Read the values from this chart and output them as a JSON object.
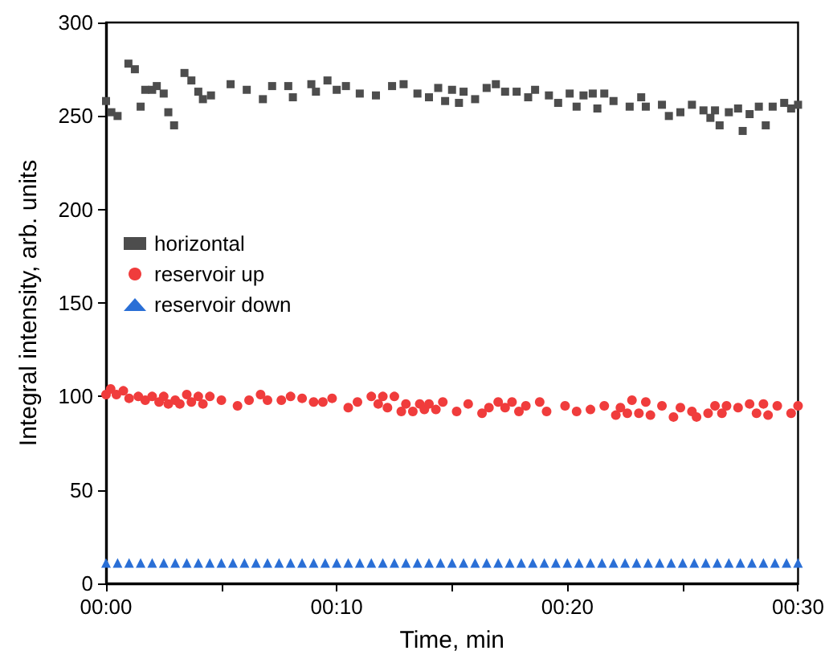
{
  "chart_data": {
    "type": "scatter",
    "xlabel": "Time, min",
    "ylabel": "Integral intensity, arb. units",
    "xlim": [
      0,
      30
    ],
    "xticks": [
      {
        "value": 0,
        "label": "00:00"
      },
      {
        "value": 5,
        "label": null
      },
      {
        "value": 10,
        "label": "00:10"
      },
      {
        "value": 15,
        "label": null
      },
      {
        "value": 20,
        "label": "00:20"
      },
      {
        "value": 25,
        "label": null
      },
      {
        "value": 30,
        "label": "00:30"
      }
    ],
    "ylim": [
      0,
      300
    ],
    "yticks": [
      0,
      50,
      100,
      150,
      200,
      250,
      300
    ],
    "grid": false,
    "legend": "left",
    "series": [
      {
        "name": "horizontal",
        "color": "#4d4d4d",
        "marker": "square",
        "x": [
          0,
          0.23,
          0.5,
          0.97,
          1.25,
          1.5,
          1.7,
          2.0,
          2.2,
          2.5,
          2.7,
          2.95,
          3.4,
          3.7,
          4.0,
          4.2,
          4.55,
          5.4,
          6.1,
          6.8,
          7.2,
          7.9,
          8.1,
          8.9,
          9.1,
          9.6,
          10.0,
          10.4,
          11.0,
          11.7,
          12.4,
          12.9,
          13.5,
          14.0,
          14.4,
          14.7,
          15.0,
          15.3,
          15.5,
          16.0,
          16.5,
          16.9,
          17.3,
          17.8,
          18.3,
          18.6,
          19.2,
          19.6,
          20.1,
          20.4,
          20.7,
          21.1,
          21.3,
          21.6,
          22.0,
          22.7,
          23.2,
          23.4,
          24.1,
          24.4,
          24.9,
          25.4,
          25.9,
          26.2,
          26.4,
          26.6,
          27.0,
          27.4,
          27.6,
          27.9,
          28.3,
          28.6,
          28.9,
          29.4,
          29.7,
          30.0
        ],
        "values": [
          258,
          252,
          250,
          278,
          275,
          255,
          264,
          264,
          266,
          262,
          252,
          245,
          273,
          269,
          263,
          259,
          261,
          267,
          264,
          259,
          266,
          266,
          260,
          267,
          263,
          269,
          264,
          266,
          262,
          261,
          266,
          267,
          262,
          260,
          265,
          258,
          264,
          257,
          263,
          259,
          265,
          267,
          263,
          263,
          260,
          264,
          261,
          257,
          262,
          255,
          261,
          262,
          254,
          262,
          258,
          255,
          260,
          255,
          256,
          250,
          252,
          256,
          253,
          249,
          253,
          245,
          252,
          254,
          242,
          251,
          255,
          245,
          255,
          257,
          254,
          256
        ]
      },
      {
        "name": "reservoir up",
        "color": "#f03c3c",
        "marker": "circle",
        "x": [
          0,
          0.2,
          0.45,
          0.75,
          1.0,
          1.4,
          1.7,
          2.0,
          2.3,
          2.5,
          2.7,
          3.0,
          3.2,
          3.5,
          3.7,
          4.0,
          4.2,
          4.5,
          5.0,
          5.7,
          6.2,
          6.7,
          7.0,
          7.6,
          8.0,
          8.5,
          9.0,
          9.4,
          9.8,
          10.5,
          10.9,
          11.5,
          11.8,
          12.0,
          12.2,
          12.5,
          12.8,
          13.0,
          13.3,
          13.6,
          13.8,
          14.0,
          14.3,
          14.6,
          15.2,
          15.7,
          16.3,
          16.6,
          17.0,
          17.3,
          17.6,
          17.9,
          18.2,
          18.8,
          19.1,
          19.9,
          20.4,
          21.0,
          21.6,
          22.1,
          22.3,
          22.6,
          22.8,
          23.1,
          23.4,
          23.6,
          24.1,
          24.6,
          24.9,
          25.4,
          25.6,
          26.1,
          26.4,
          26.7,
          26.9,
          27.4,
          27.9,
          28.2,
          28.5,
          28.7,
          29.1,
          29.7,
          30.0
        ],
        "values": [
          101,
          104,
          101,
          103,
          99,
          100,
          98,
          100,
          97,
          100,
          96,
          98,
          96,
          101,
          97,
          100,
          96,
          100,
          98,
          95,
          98,
          101,
          98,
          98,
          100,
          99,
          97,
          97,
          99,
          94,
          97,
          100,
          96,
          100,
          94,
          100,
          92,
          96,
          92,
          96,
          93,
          96,
          93,
          97,
          92,
          96,
          91,
          94,
          97,
          94,
          97,
          92,
          95,
          97,
          92,
          95,
          92,
          93,
          95,
          90,
          94,
          91,
          98,
          91,
          97,
          90,
          95,
          89,
          94,
          92,
          89,
          91,
          95,
          91,
          95,
          94,
          96,
          91,
          96,
          90,
          95,
          91,
          95
        ]
      },
      {
        "name": "reservoir down",
        "color": "#2a6fd6",
        "marker": "triangle",
        "x": [
          0,
          0.5,
          1,
          1.5,
          2,
          2.5,
          3,
          3.5,
          4,
          4.5,
          5,
          5.5,
          6,
          6.5,
          7,
          7.5,
          8,
          8.5,
          9,
          9.5,
          10,
          10.5,
          11,
          11.5,
          12,
          12.5,
          13,
          13.5,
          14,
          14.5,
          15,
          15.5,
          16,
          16.5,
          17,
          17.5,
          18,
          18.5,
          19,
          19.5,
          20,
          20.5,
          21,
          21.5,
          22,
          22.5,
          23,
          23.5,
          24,
          24.5,
          25,
          25.5,
          26,
          26.5,
          27,
          27.5,
          28,
          28.5,
          29,
          29.5,
          30
        ],
        "values": [
          11,
          11,
          11,
          11,
          11,
          11,
          11,
          11,
          11,
          11,
          11,
          11,
          11,
          11,
          11,
          11,
          11,
          11,
          11,
          11,
          11,
          11,
          11,
          11,
          11,
          11,
          11,
          11,
          11,
          11,
          11,
          11,
          11,
          11,
          11,
          11,
          11,
          11,
          11,
          11,
          11,
          11,
          11,
          11,
          11,
          11,
          11,
          11,
          11,
          11,
          11,
          11,
          11,
          11,
          11,
          11,
          11,
          11,
          11,
          11,
          11
        ]
      }
    ]
  }
}
